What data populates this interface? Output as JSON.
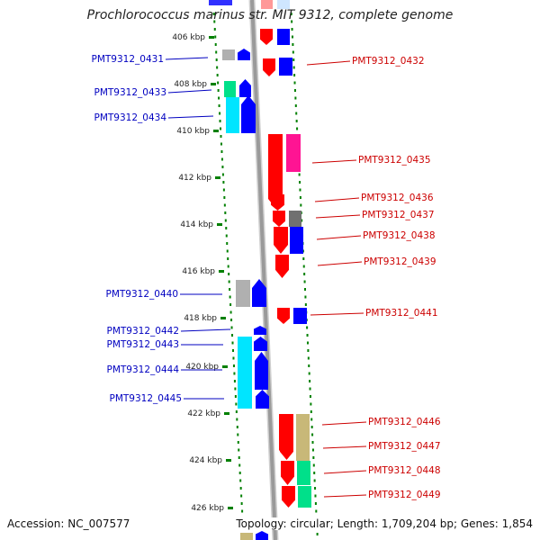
{
  "title": "Prochlorococcus marinus str. MIT 9312, complete genome",
  "accession": "Accession: NC_007577",
  "topology": "Topology: circular; Length: 1,709,204 bp; Genes: 1,854",
  "axis": {
    "ticks": [
      "406 kbp",
      "408 kbp",
      "410 kbp",
      "412 kbp",
      "414 kbp",
      "416 kbp",
      "418 kbp",
      "420 kbp",
      "422 kbp",
      "424 kbp",
      "426 kbp"
    ],
    "range_kbp": [
      405,
      427
    ]
  },
  "colors": {
    "left_label": "#0000c0",
    "right_label": "#cc0000",
    "red": "#ff0000",
    "blue": "#0000ff",
    "cyan": "#00e5ff",
    "gray": "#b0b0b0",
    "dark_gray": "#707070",
    "magenta": "#ff1493",
    "teal": "#00e08a",
    "khaki": "#c8b878",
    "pink": "#ff9999",
    "backbone": "#9a9a9a",
    "tick_dots": "#008000"
  },
  "labels_left": [
    "PMT9312_0431",
    "PMT9312_0433",
    "PMT9312_0434",
    "PMT9312_0440",
    "PMT9312_0442",
    "PMT9312_0443",
    "PMT9312_0444",
    "PMT9312_0445"
  ],
  "labels_right": [
    "PMT9312_0432",
    "PMT9312_0435",
    "PMT9312_0436",
    "PMT9312_0437",
    "PMT9312_0438",
    "PMT9312_0439",
    "PMT9312_0441",
    "PMT9312_0446",
    "PMT9312_0447",
    "PMT9312_0448",
    "PMT9312_0449"
  ]
}
